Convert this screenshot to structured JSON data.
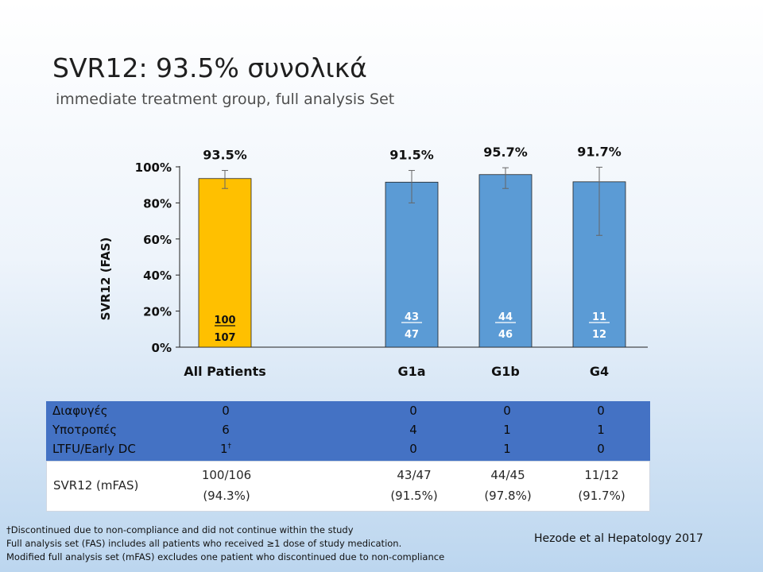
{
  "title": "SVR12: 93.5% συνολικά",
  "subtitle": "immediate treatment group, full analysis Set",
  "chart_data": {
    "type": "bar",
    "categories": [
      "All Patients",
      "G1a",
      "G1b",
      "G4"
    ],
    "values": [
      93.5,
      91.5,
      95.7,
      91.7
    ],
    "value_labels": [
      "93.5%",
      "91.5%",
      "95.7%",
      "91.7%"
    ],
    "error_low": [
      88,
      80,
      88,
      62
    ],
    "error_high": [
      98,
      98,
      99.5,
      99.8
    ],
    "numerators": [
      "100",
      "43",
      "44",
      "11"
    ],
    "denominators": [
      "107",
      "47",
      "46",
      "12"
    ],
    "bar_colors": [
      "#ffc000",
      "#5b9bd5",
      "#5b9bd5",
      "#5b9bd5"
    ],
    "ylabel": "SVR12 (FAS)",
    "ylim": [
      0,
      100
    ],
    "yticks": [
      "0%",
      "20%",
      "40%",
      "60%",
      "80%",
      "100%"
    ],
    "grid": false
  },
  "table": {
    "row_labels": [
      "Διαφυγές",
      "Υποτροπές",
      "LTFU/Early DC"
    ],
    "columns": [
      {
        "vals": [
          "0",
          "6",
          "1"
        ],
        "sup": "†"
      },
      {
        "vals": [
          "0",
          "4",
          "0"
        ],
        "sup": ""
      },
      {
        "vals": [
          "0",
          "1",
          "1"
        ],
        "sup": ""
      },
      {
        "vals": [
          "0",
          "1",
          "0"
        ],
        "sup": ""
      }
    ],
    "mfas_label": "SVR12 (mFAS)",
    "mfas": [
      {
        "frac": "100/106",
        "pct": "(94.3%)"
      },
      {
        "frac": "43/47",
        "pct": "(91.5%)"
      },
      {
        "frac": "44/45",
        "pct": "(97.8%)"
      },
      {
        "frac": "11/12",
        "pct": "(91.7%)"
      }
    ]
  },
  "footnotes": [
    "†Discontinued due to non-compliance and did not continue within the study",
    "Full analysis set (FAS) includes all patients who received ≥1 dose of study medication.",
    "Modified full analysis set (mFAS) excludes one patient who discontinued due to non-compliance"
  ],
  "citation": "Hezode et al Hepatology 2017"
}
